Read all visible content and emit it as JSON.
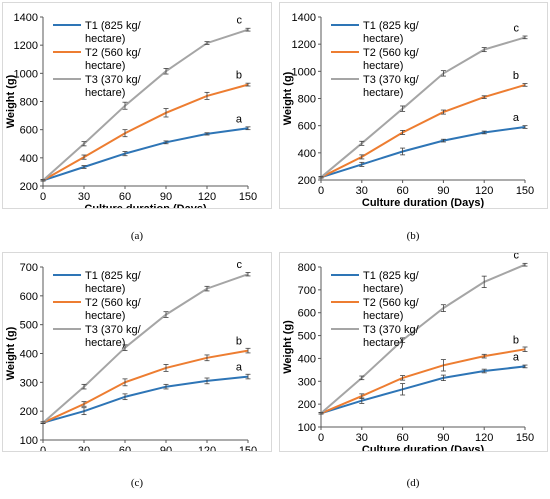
{
  "figure": {
    "panels": [
      {
        "caption": "(a)"
      },
      {
        "caption": "(b)"
      },
      {
        "caption": "(c)"
      },
      {
        "caption": "(d)"
      }
    ]
  },
  "chart_data": [
    {
      "type": "line",
      "xlabel": "Culture duration (Days)",
      "ylabel": "Weight (g)",
      "x": [
        0,
        30,
        60,
        90,
        120,
        150
      ],
      "xlim": [
        0,
        150
      ],
      "ylim": [
        200,
        1400
      ],
      "yticks": [
        200,
        400,
        600,
        800,
        1000,
        1200,
        1400
      ],
      "grid": false,
      "legend_position": "top-left",
      "series": [
        {
          "name": "T1 (825 kg/ hectare)",
          "color": "#2e75b6",
          "values": [
            240,
            335,
            430,
            510,
            570,
            610
          ],
          "errors": [
            5,
            10,
            15,
            10,
            8,
            10
          ],
          "label": "a"
        },
        {
          "name": "T2 (560 kg/ hectare)",
          "color": "#ed7d31",
          "values": [
            240,
            405,
            575,
            720,
            840,
            920
          ],
          "errors": [
            5,
            15,
            25,
            30,
            25,
            10
          ],
          "label": "b"
        },
        {
          "name": "T3 (370 kg/ hectare)",
          "color": "#a5a5a5",
          "values": [
            240,
            500,
            770,
            1015,
            1215,
            1310
          ],
          "errors": [
            5,
            15,
            25,
            20,
            10,
            10
          ],
          "label": "c"
        }
      ]
    },
    {
      "type": "line",
      "xlabel": "Culture duration (Days)",
      "ylabel": "Weight (g)",
      "x": [
        0,
        30,
        60,
        90,
        120,
        150
      ],
      "xlim": [
        0,
        150
      ],
      "ylim": [
        200,
        1400
      ],
      "yticks": [
        200,
        400,
        600,
        800,
        1000,
        1200,
        1400
      ],
      "grid": false,
      "legend_position": "top-left",
      "series": [
        {
          "name": "T1 (825 kg/ hectare)",
          "color": "#2e75b6",
          "values": [
            220,
            315,
            410,
            490,
            550,
            590
          ],
          "errors": [
            5,
            15,
            25,
            10,
            10,
            10
          ],
          "label": "a"
        },
        {
          "name": "T2 (560 kg/ hectare)",
          "color": "#ed7d31",
          "values": [
            220,
            370,
            550,
            700,
            810,
            900
          ],
          "errors": [
            5,
            15,
            15,
            15,
            10,
            10
          ],
          "label": "b"
        },
        {
          "name": "T3 (370 kg/ hectare)",
          "color": "#a5a5a5",
          "values": [
            220,
            470,
            725,
            985,
            1160,
            1250
          ],
          "errors": [
            5,
            15,
            20,
            20,
            15,
            10
          ],
          "label": "c"
        }
      ]
    },
    {
      "type": "line",
      "xlabel": "Culture duration (Days)",
      "ylabel": "Weight (g)",
      "x": [
        0,
        30,
        60,
        90,
        120,
        150
      ],
      "xlim": [
        0,
        150
      ],
      "ylim": [
        100,
        700
      ],
      "yticks": [
        100,
        200,
        300,
        400,
        500,
        600,
        700
      ],
      "grid": false,
      "legend_position": "top-left",
      "series": [
        {
          "name": "T1 (825 kg/ hectare)",
          "color": "#2e75b6",
          "values": [
            160,
            200,
            250,
            285,
            305,
            320
          ],
          "errors": [
            3,
            12,
            10,
            8,
            10,
            8
          ],
          "label": "a"
        },
        {
          "name": "T2 (560 kg/ hectare)",
          "color": "#ed7d31",
          "values": [
            160,
            225,
            300,
            350,
            385,
            410
          ],
          "errors": [
            3,
            8,
            12,
            12,
            10,
            8
          ],
          "label": "b"
        },
        {
          "name": "T3 (370 kg/ hectare)",
          "color": "#a5a5a5",
          "values": [
            160,
            285,
            420,
            535,
            625,
            675
          ],
          "errors": [
            3,
            8,
            10,
            10,
            8,
            6
          ],
          "label": "c"
        }
      ]
    },
    {
      "type": "line",
      "xlabel": "Culture duration (Days)",
      "ylabel": "Weight (g)",
      "x": [
        0,
        30,
        60,
        90,
        120,
        150
      ],
      "xlim": [
        0,
        150
      ],
      "ylim": [
        100,
        800
      ],
      "yticks": [
        100,
        200,
        300,
        400,
        500,
        600,
        700,
        800
      ],
      "grid": false,
      "legend_position": "top-left",
      "series": [
        {
          "name": "T1 (825 kg/ hectare)",
          "color": "#2e75b6",
          "values": [
            160,
            215,
            265,
            315,
            345,
            365
          ],
          "errors": [
            3,
            12,
            25,
            12,
            8,
            6
          ],
          "label": "a"
        },
        {
          "name": "T2 (560 kg/ hectare)",
          "color": "#ed7d31",
          "values": [
            160,
            235,
            315,
            370,
            410,
            440
          ],
          "errors": [
            3,
            10,
            10,
            25,
            8,
            10
          ],
          "label": "b"
        },
        {
          "name": "T3 (370 kg/ hectare)",
          "color": "#a5a5a5",
          "values": [
            160,
            315,
            480,
            620,
            735,
            810
          ],
          "errors": [
            3,
            8,
            10,
            15,
            25,
            6
          ],
          "label": "c"
        }
      ]
    }
  ]
}
